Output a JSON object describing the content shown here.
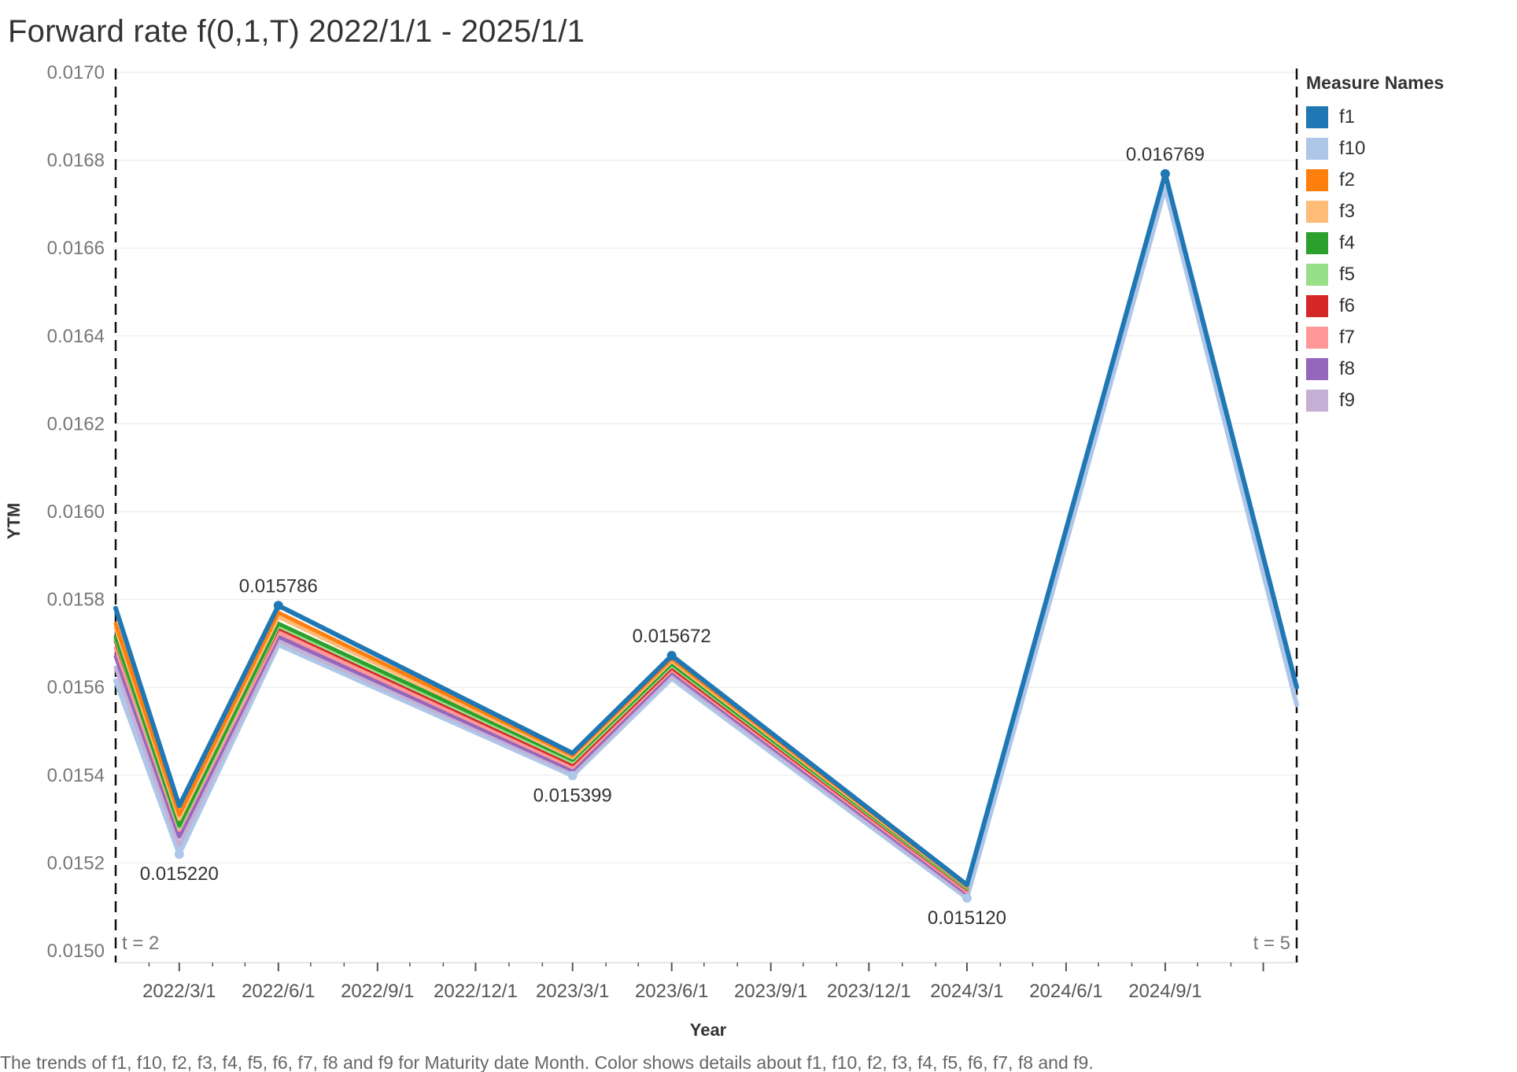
{
  "title": "Forward rate f(0,1,T) 2022/1/1  - 2025/1/1",
  "caption": "The trends of f1, f10, f2, f3, f4, f5, f6, f7, f8 and f9 for Maturity date Month.  Color shows details about f1, f10, f2, f3, f4, f5, f6, f7, f8 and f9.",
  "legend": {
    "title": "Measure Names",
    "items": [
      {
        "name": "f1",
        "color": "#1f77b4"
      },
      {
        "name": "f10",
        "color": "#aec7e8"
      },
      {
        "name": "f2",
        "color": "#ff7f0e"
      },
      {
        "name": "f3",
        "color": "#ffbb78"
      },
      {
        "name": "f4",
        "color": "#2ca02c"
      },
      {
        "name": "f5",
        "color": "#98df8a"
      },
      {
        "name": "f6",
        "color": "#d62728"
      },
      {
        "name": "f7",
        "color": "#ff9896"
      },
      {
        "name": "f8",
        "color": "#9467bd"
      },
      {
        "name": "f9",
        "color": "#c5b0d5"
      }
    ]
  },
  "chart_data": {
    "type": "line",
    "title": "Forward rate f(0,1,T) 2022/1/1  - 2025/1/1",
    "xlabel": "Year",
    "ylabel": "YTM",
    "ylim": [
      0.015,
      0.017
    ],
    "xlim": [
      "2022-01-01",
      "2025-01-01"
    ],
    "yticks": [
      "0.0150",
      "0.0152",
      "0.0154",
      "0.0156",
      "0.0158",
      "0.0160",
      "0.0162",
      "0.0164",
      "0.0166",
      "0.0168",
      "0.0170"
    ],
    "xticks": [
      {
        "date": "2022-03-01",
        "label": "2022/3/1"
      },
      {
        "date": "2022-06-01",
        "label": "2022/6/1"
      },
      {
        "date": "2022-09-01",
        "label": "2022/9/1"
      },
      {
        "date": "2022-12-01",
        "label": "2022/12/1"
      },
      {
        "date": "2023-03-01",
        "label": "2023/3/1"
      },
      {
        "date": "2023-06-01",
        "label": "2023/6/1"
      },
      {
        "date": "2023-09-01",
        "label": "2023/9/1"
      },
      {
        "date": "2023-12-01",
        "label": "2023/12/1"
      },
      {
        "date": "2024-03-01",
        "label": "2024/3/1"
      },
      {
        "date": "2024-06-01",
        "label": "2024/6/1"
      },
      {
        "date": "2024-09-01",
        "label": "2024/9/1"
      },
      {
        "date": "2024-12-01",
        "label": ""
      }
    ],
    "grid": true,
    "legend_position": "right",
    "reference_lines": [
      {
        "date": "2022-01-01",
        "label": "t = 2",
        "label_side": "right"
      },
      {
        "date": "2025-01-01",
        "label": "t = 5",
        "label_side": "left"
      }
    ],
    "x": [
      "2022-01-01",
      "2022-03-01",
      "2022-06-01",
      "2023-03-01",
      "2023-06-01",
      "2024-03-01",
      "2024-09-01",
      "2025-01-01"
    ],
    "series": [
      {
        "name": "f10",
        "color": "#aec7e8",
        "values": [
          0.015615,
          0.01522,
          0.015697,
          0.015399,
          0.01562,
          0.01512,
          0.016737,
          0.01556
        ]
      },
      {
        "name": "f9",
        "color": "#c5b0d5",
        "values": [
          0.015645,
          0.01524,
          0.015706,
          0.015405,
          0.015628,
          0.015125,
          null,
          null
        ]
      },
      {
        "name": "f8",
        "color": "#9467bd",
        "values": [
          0.01567,
          0.01526,
          0.015715,
          0.015411,
          0.015634,
          0.01513,
          null,
          null
        ]
      },
      {
        "name": "f7",
        "color": "#ff9896",
        "values": [
          0.01569,
          0.015275,
          0.015725,
          0.015418,
          0.01564,
          0.015135,
          null,
          null
        ]
      },
      {
        "name": "f6",
        "color": "#d62728",
        "values": [
          0.015705,
          0.01529,
          0.015735,
          0.015425,
          0.015645,
          0.01514,
          null,
          null
        ]
      },
      {
        "name": "f5",
        "color": "#98df8a",
        "values": [
          0.01571,
          0.01528,
          0.01574,
          0.01543,
          0.01565,
          0.015142,
          null,
          null
        ]
      },
      {
        "name": "f4",
        "color": "#2ca02c",
        "values": [
          0.015715,
          0.015285,
          0.015745,
          0.015435,
          0.015654,
          0.015144,
          null,
          null
        ]
      },
      {
        "name": "f3",
        "color": "#ffbb78",
        "values": [
          0.015735,
          0.0153,
          0.01576,
          0.01544,
          0.01566,
          0.015146,
          null,
          null
        ]
      },
      {
        "name": "f2",
        "color": "#ff7f0e",
        "values": [
          0.015745,
          0.01531,
          0.01577,
          0.015445,
          0.015665,
          0.015148,
          null,
          null
        ]
      },
      {
        "name": "f1",
        "color": "#1f77b4",
        "values": [
          0.01578,
          0.01533,
          0.015786,
          0.01545,
          0.015672,
          0.01515,
          0.016769,
          0.0156
        ]
      }
    ],
    "annotations": [
      {
        "date": "2022-03-01",
        "value": 0.01522,
        "label": "0.015220",
        "position": "below"
      },
      {
        "date": "2022-06-01",
        "value": 0.015786,
        "label": "0.015786",
        "position": "above"
      },
      {
        "date": "2023-03-01",
        "value": 0.015399,
        "label": "0.015399",
        "position": "below"
      },
      {
        "date": "2023-06-01",
        "value": 0.015672,
        "label": "0.015672",
        "position": "above"
      },
      {
        "date": "2024-03-01",
        "value": 0.01512,
        "label": "0.015120",
        "position": "below"
      },
      {
        "date": "2024-09-01",
        "value": 0.016769,
        "label": "0.016769",
        "position": "above"
      }
    ]
  }
}
